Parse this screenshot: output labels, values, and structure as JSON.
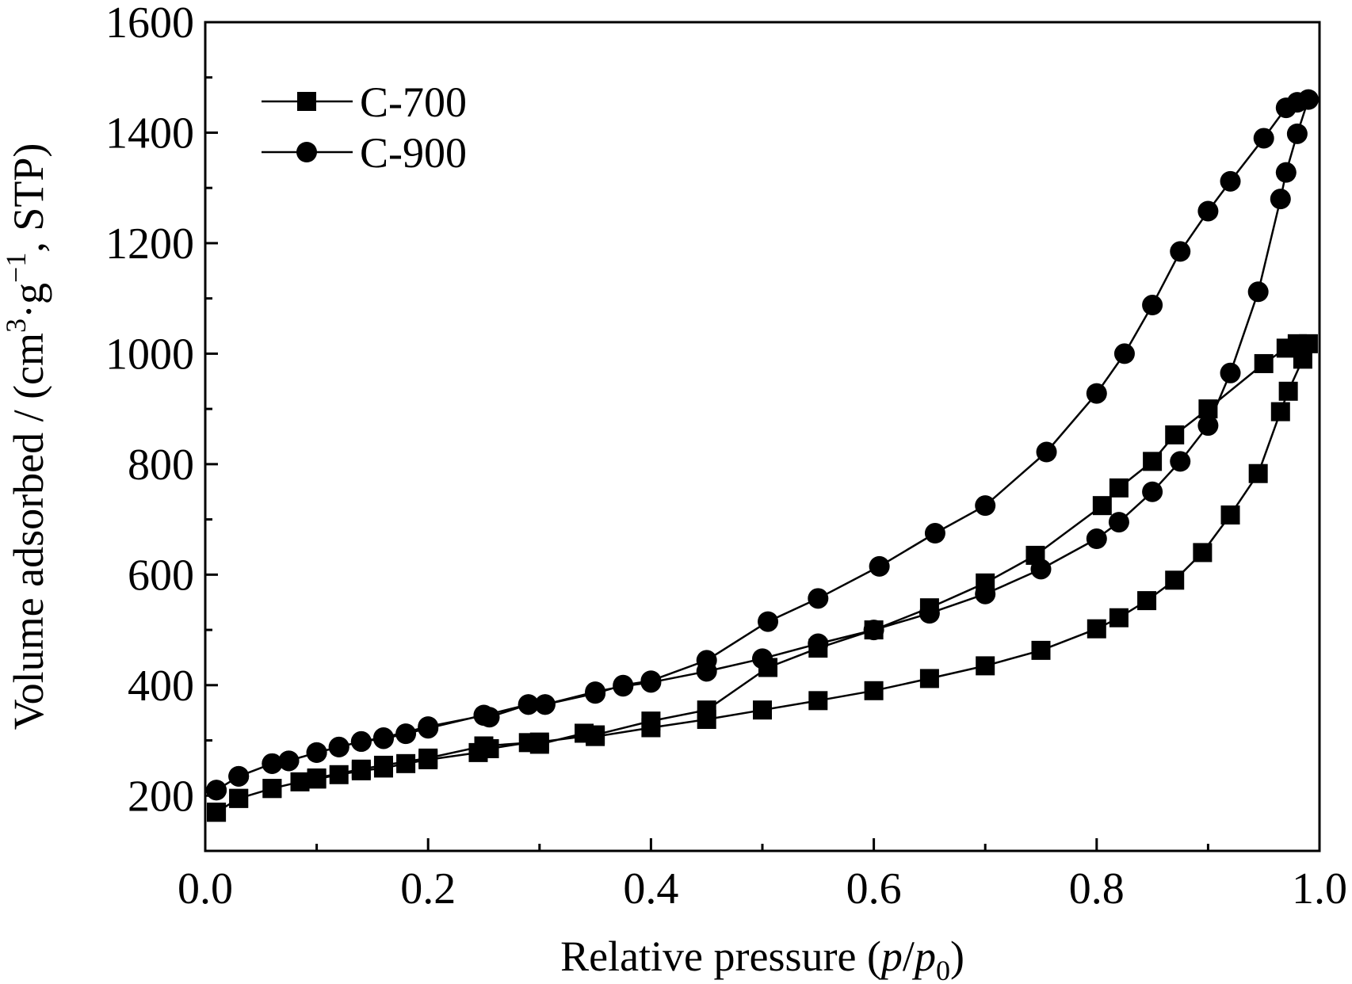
{
  "chart_data": {
    "type": "line",
    "xlabel": {
      "prefix": "Relative pressure (",
      "p": "p",
      "slash": "/",
      "p0_base": "p",
      "p0_sub": "0",
      "suffix": ")"
    },
    "ylabel": {
      "prefix": "Volume adsorbed / (cm",
      "sup3": "3",
      "mid": "·g",
      "sup_neg1": "−1",
      "suffix": ", STP)"
    },
    "xlim": [
      0.0,
      1.0
    ],
    "ylim": [
      100,
      1600
    ],
    "x_ticks": [
      {
        "value": 0.0,
        "label": "0.0"
      },
      {
        "value": 0.2,
        "label": "0.2"
      },
      {
        "value": 0.4,
        "label": "0.4"
      },
      {
        "value": 0.6,
        "label": "0.6"
      },
      {
        "value": 0.8,
        "label": "0.8"
      },
      {
        "value": 1.0,
        "label": "1.0"
      }
    ],
    "y_ticks": [
      {
        "value": 200,
        "label": "200"
      },
      {
        "value": 400,
        "label": "400"
      },
      {
        "value": 600,
        "label": "600"
      },
      {
        "value": 800,
        "label": "800"
      },
      {
        "value": 1000,
        "label": "1000"
      },
      {
        "value": 1200,
        "label": "1200"
      },
      {
        "value": 1400,
        "label": "1400"
      },
      {
        "value": 1600,
        "label": "1600"
      }
    ],
    "x_minor_ticks": [
      0.1,
      0.3,
      0.5,
      0.7,
      0.9
    ],
    "y_minor_ticks": [
      300,
      500,
      700,
      900,
      1100,
      1300,
      1500
    ],
    "legend_position": "top-left",
    "series": [
      {
        "name": "C-700",
        "marker": "square",
        "color": "#000000",
        "x": [
          0.01,
          0.03,
          0.06,
          0.085,
          0.1,
          0.12,
          0.14,
          0.16,
          0.18,
          0.2,
          0.245,
          0.255,
          0.29,
          0.3,
          0.34,
          0.35,
          0.4,
          0.45,
          0.5,
          0.55,
          0.6,
          0.65,
          0.7,
          0.75,
          0.8,
          0.82,
          0.845,
          0.87,
          0.895,
          0.92,
          0.945,
          0.965,
          0.972,
          0.985,
          0.99,
          0.98,
          0.97,
          0.95,
          0.9,
          0.87,
          0.85,
          0.82,
          0.805,
          0.745,
          0.7,
          0.65,
          0.6,
          0.55,
          0.505,
          0.45,
          0.4,
          0.35,
          0.3,
          0.25,
          0.2,
          0.16,
          0.14,
          0.1,
          0.06,
          0.03,
          0.01
        ],
        "y": [
          170,
          195,
          213,
          225,
          230,
          238,
          245,
          250,
          258,
          265,
          278,
          285,
          296,
          293,
          313,
          307,
          323,
          338,
          355,
          372,
          390,
          412,
          435,
          463,
          502,
          522,
          553,
          590,
          640,
          708,
          783,
          895,
          932,
          990,
          1018,
          1018,
          1010,
          982,
          900,
          853,
          805,
          757,
          725,
          635,
          585,
          540,
          500,
          467,
          432,
          355,
          335,
          310,
          297,
          290,
          268,
          255,
          248,
          232,
          213,
          195,
          170
        ]
      },
      {
        "name": "C-900",
        "marker": "circle",
        "color": "#000000",
        "x": [
          0.01,
          0.03,
          0.06,
          0.075,
          0.1,
          0.12,
          0.14,
          0.16,
          0.18,
          0.2,
          0.25,
          0.255,
          0.29,
          0.305,
          0.35,
          0.375,
          0.4,
          0.45,
          0.5,
          0.55,
          0.6,
          0.65,
          0.7,
          0.75,
          0.8,
          0.82,
          0.85,
          0.875,
          0.9,
          0.92,
          0.945,
          0.965,
          0.97,
          0.98,
          0.99,
          0.98,
          0.97,
          0.95,
          0.92,
          0.9,
          0.875,
          0.85,
          0.825,
          0.8,
          0.755,
          0.7,
          0.655,
          0.605,
          0.55,
          0.505,
          0.45,
          0.4,
          0.375,
          0.35,
          0.305,
          0.29,
          0.25,
          0.2,
          0.16,
          0.14,
          0.12,
          0.1,
          0.075,
          0.06,
          0.03,
          0.01
        ],
        "y": [
          210,
          235,
          258,
          263,
          278,
          288,
          298,
          303,
          312,
          322,
          346,
          342,
          365,
          365,
          388,
          398,
          405,
          425,
          448,
          475,
          500,
          530,
          565,
          610,
          665,
          695,
          750,
          805,
          870,
          965,
          1112,
          1280,
          1328,
          1398,
          1460,
          1455,
          1445,
          1390,
          1312,
          1258,
          1185,
          1088,
          1000,
          928,
          822,
          725,
          675,
          615,
          557,
          515,
          445,
          408,
          400,
          385,
          365,
          365,
          345,
          325,
          305,
          298,
          288,
          278,
          263,
          258,
          235,
          210
        ]
      }
    ]
  }
}
